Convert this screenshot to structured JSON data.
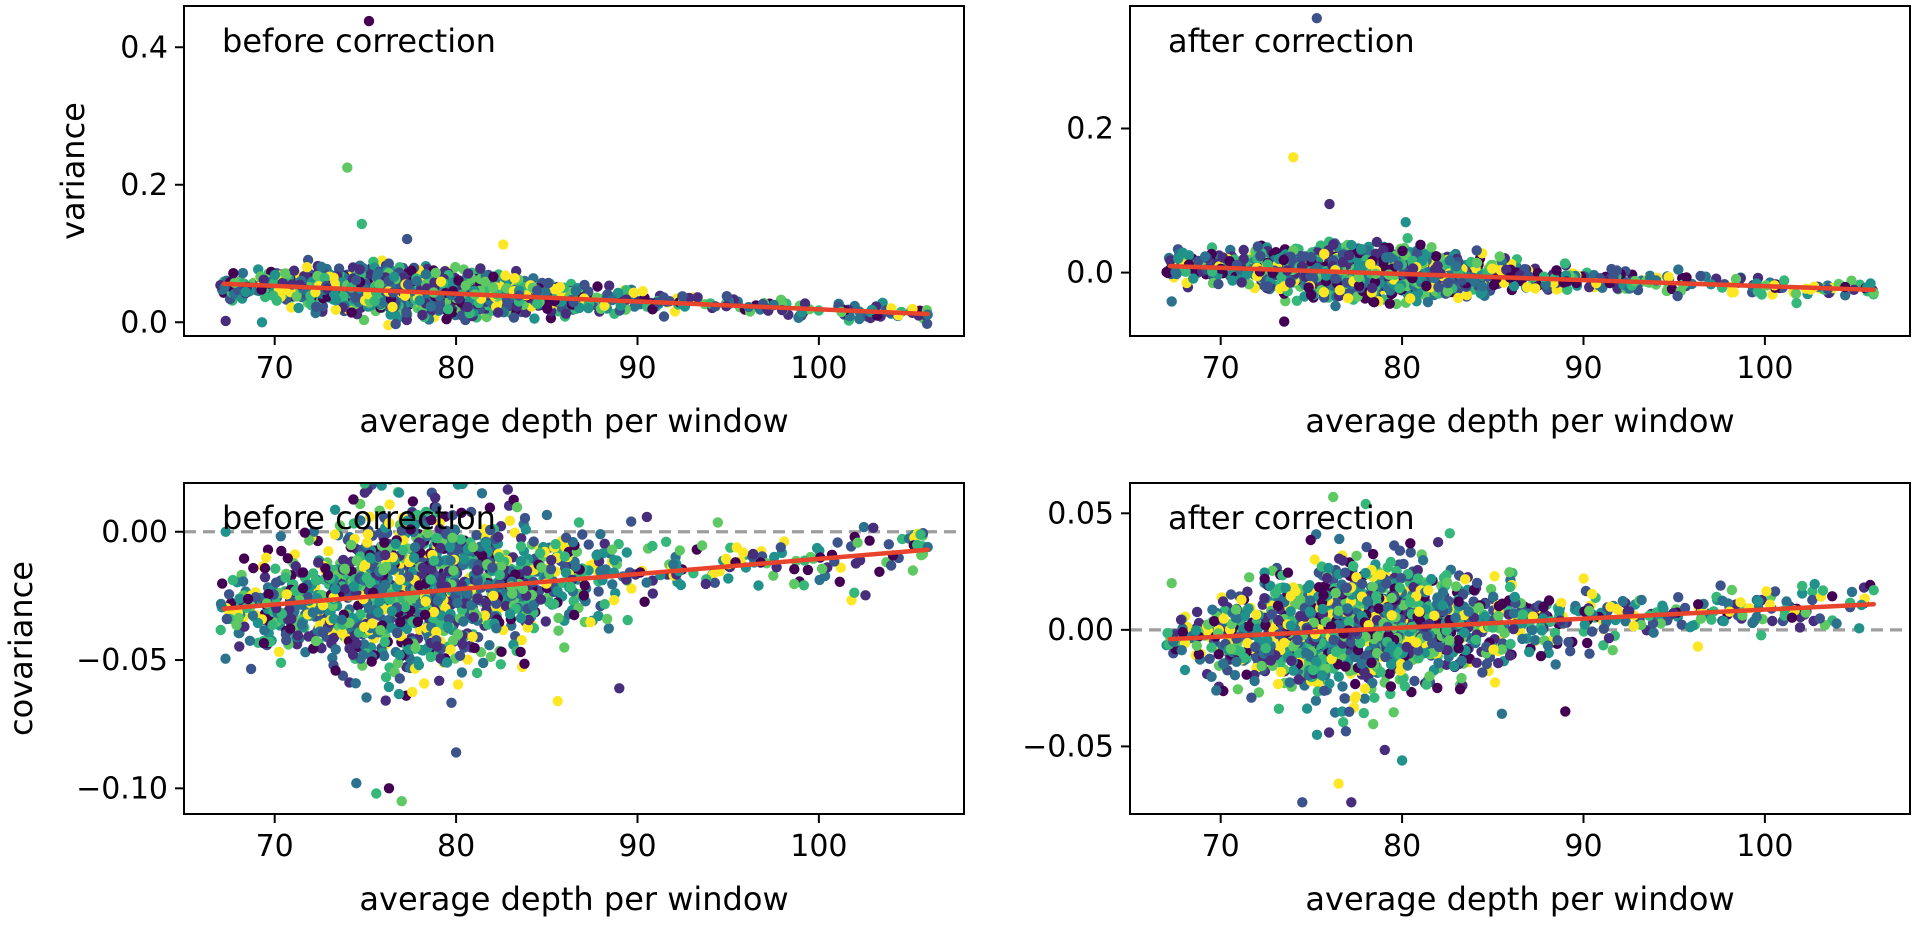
{
  "figure": {
    "description_free": true
  },
  "chart_data": [
    {
      "type": "scatter",
      "panel": "top-left",
      "annotation": "before correction",
      "xlabel": "average depth per window",
      "ylabel": "variance",
      "xlim": [
        65,
        108
      ],
      "ylim": [
        -0.02,
        0.46
      ],
      "xticks": [
        70,
        80,
        90,
        100
      ],
      "xtick_labels": [
        "70",
        "80",
        "90",
        "100"
      ],
      "yticks": [
        0.0,
        0.2,
        0.4
      ],
      "ytick_labels": [
        "0.0",
        "0.2",
        "0.4"
      ],
      "reference_line": null,
      "trend": {
        "x": [
          67.2,
          106
        ],
        "y": [
          0.056,
          0.012
        ]
      },
      "series": {
        "x_center": 78,
        "x_spread": 5.5,
        "x_min": 67,
        "x_max": 106,
        "noise": 0.012,
        "n": 1500
      },
      "outliers": [
        [
          75.2,
          0.438
        ],
        [
          74.0,
          0.225
        ],
        [
          74.8,
          0.143
        ],
        [
          77.3,
          0.121
        ],
        [
          82.6,
          0.113
        ],
        [
          67.3,
          0.002
        ],
        [
          69.3,
          0.0
        ],
        [
          106,
          0.011
        ]
      ]
    },
    {
      "type": "scatter",
      "panel": "top-right",
      "annotation": "after correction",
      "xlabel": "average depth per window",
      "ylabel": "",
      "xlim": [
        65,
        108
      ],
      "ylim": [
        -0.088,
        0.37
      ],
      "xticks": [
        70,
        80,
        90,
        100
      ],
      "xtick_labels": [
        "70",
        "80",
        "90",
        "100"
      ],
      "yticks": [
        0.0,
        0.2
      ],
      "ytick_labels": [
        "0.0",
        "0.2"
      ],
      "reference_line": null,
      "trend": {
        "x": [
          67.2,
          106
        ],
        "y": [
          0.009,
          -0.024
        ]
      },
      "series": {
        "x_center": 78,
        "x_spread": 5.5,
        "x_min": 67,
        "x_max": 106,
        "noise": 0.012,
        "n": 1500
      },
      "outliers": [
        [
          75.3,
          0.353
        ],
        [
          74.0,
          0.16
        ],
        [
          76.0,
          0.095
        ],
        [
          80.2,
          0.07
        ],
        [
          67.3,
          -0.04
        ],
        [
          73.5,
          -0.068
        ],
        [
          106,
          -0.028
        ]
      ]
    },
    {
      "type": "scatter",
      "panel": "bottom-left",
      "annotation": "before correction",
      "xlabel": "average depth per window",
      "ylabel": "covariance",
      "xlim": [
        65,
        108
      ],
      "ylim": [
        -0.11,
        0.019
      ],
      "xticks": [
        70,
        80,
        90,
        100
      ],
      "xtick_labels": [
        "70",
        "80",
        "90",
        "100"
      ],
      "yticks": [
        0.0,
        -0.05,
        -0.1
      ],
      "ytick_labels": [
        "0.00",
        "−0.05",
        "−0.10"
      ],
      "reference_line": 0.0,
      "trend": {
        "x": [
          67.2,
          106
        ],
        "y": [
          -0.03,
          -0.007
        ]
      },
      "series": {
        "x_center": 78,
        "x_spread": 5.5,
        "x_min": 67,
        "x_max": 106,
        "noise": 0.011,
        "n": 1600
      },
      "outliers": [
        [
          75.9,
          0.018
        ],
        [
          74.5,
          -0.098
        ],
        [
          76.3,
          -0.1
        ],
        [
          77.0,
          -0.105
        ],
        [
          75.6,
          -0.102
        ],
        [
          80.0,
          -0.086
        ],
        [
          85.6,
          -0.066
        ],
        [
          89.0,
          -0.061
        ],
        [
          67.3,
          0.0
        ],
        [
          106,
          -0.006
        ]
      ]
    },
    {
      "type": "scatter",
      "panel": "bottom-right",
      "annotation": "after correction",
      "xlabel": "average depth per window",
      "ylabel": "",
      "xlim": [
        65,
        108
      ],
      "ylim": [
        -0.079,
        0.063
      ],
      "xticks": [
        70,
        80,
        90,
        100
      ],
      "xtick_labels": [
        "70",
        "80",
        "90",
        "100"
      ],
      "yticks": [
        0.05,
        0.0,
        -0.05
      ],
      "ytick_labels": [
        "0.05",
        "0.00",
        "−0.05"
      ],
      "reference_line": 0.0,
      "trend": {
        "x": [
          67.2,
          106
        ],
        "y": [
          -0.004,
          0.011
        ]
      },
      "series": {
        "x_center": 78,
        "x_spread": 5.5,
        "x_min": 67,
        "x_max": 106,
        "noise": 0.01,
        "n": 1600
      },
      "outliers": [
        [
          76.2,
          0.057
        ],
        [
          78.0,
          0.054
        ],
        [
          74.5,
          -0.074
        ],
        [
          76.5,
          -0.066
        ],
        [
          77.2,
          -0.074
        ],
        [
          80.0,
          -0.056
        ],
        [
          85.5,
          -0.036
        ],
        [
          89.0,
          -0.035
        ],
        [
          67.3,
          0.02
        ],
        [
          106,
          0.017
        ]
      ]
    }
  ],
  "colors": {
    "palette": [
      "#440154",
      "#3b528b",
      "#21918c",
      "#5ec962",
      "#fde725",
      "#2c728e",
      "#35b779",
      "#472d7b"
    ],
    "trend": "#e8432b",
    "reference": "#9e9e9e",
    "axes": "#000000"
  }
}
